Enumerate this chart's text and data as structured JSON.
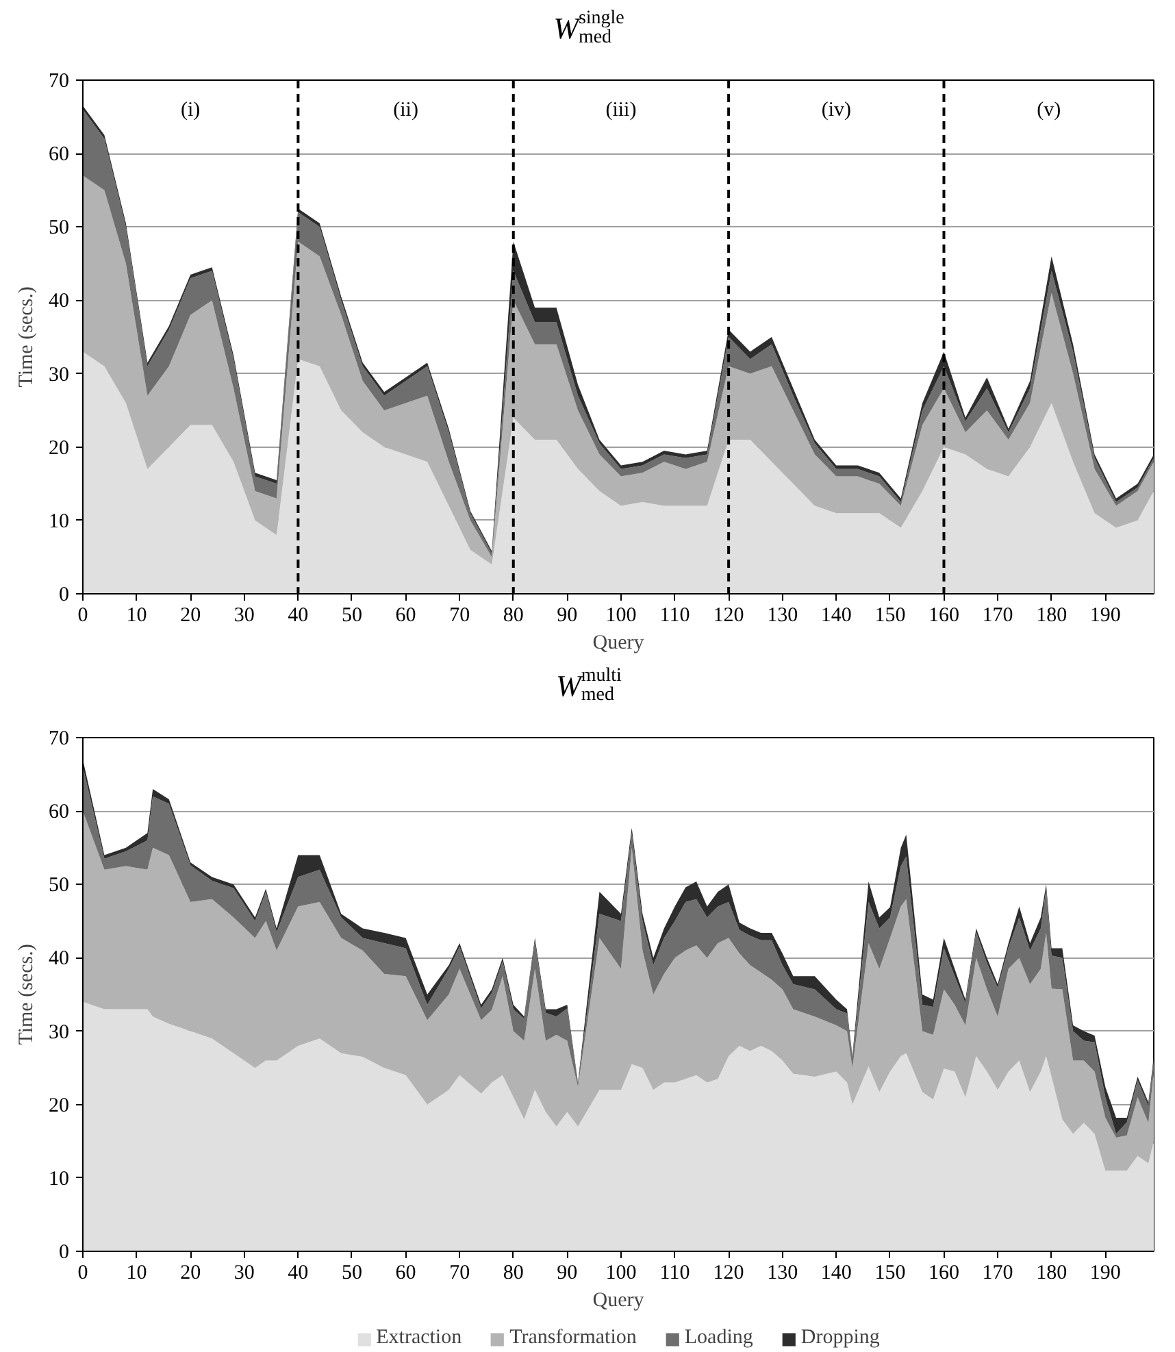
{
  "chart_data": [
    {
      "type": "area",
      "stacked": true,
      "title": "W$_{med}$$^{single}$",
      "xlabel": "Query",
      "ylabel": "Time (secs.)",
      "xlim": [
        0,
        199
      ],
      "xticks": [
        0,
        10,
        20,
        30,
        40,
        50,
        60,
        70,
        80,
        90,
        100,
        110,
        120,
        130,
        140,
        150,
        160,
        170,
        180,
        190
      ],
      "ylim": [
        0,
        70
      ],
      "yticks": [
        0,
        10,
        20,
        30,
        40,
        50,
        60,
        70
      ],
      "grid": "y",
      "legend": false,
      "x": [
        0,
        4,
        8,
        12,
        16,
        20,
        24,
        28,
        32,
        36,
        40,
        44,
        48,
        52,
        56,
        60,
        64,
        68,
        72,
        76,
        80,
        84,
        88,
        92,
        96,
        100,
        104,
        108,
        112,
        116,
        120,
        124,
        128,
        132,
        136,
        140,
        144,
        148,
        152,
        156,
        160,
        164,
        168,
        172,
        176,
        180,
        184,
        188,
        192,
        196,
        199
      ],
      "series": [
        {
          "color": "#e0e0e0",
          "values": [
            33,
            31,
            26,
            17,
            20,
            23,
            23,
            18,
            10,
            8,
            32,
            31,
            25,
            22,
            20,
            19,
            18,
            12,
            6,
            4,
            24,
            21,
            21,
            17,
            14,
            12,
            12.5,
            12,
            12,
            12,
            21,
            21,
            18,
            15,
            12,
            11,
            11,
            11,
            9,
            14,
            20,
            19,
            17,
            16,
            20,
            26,
            18,
            11,
            9,
            10,
            14
          ]
        },
        {
          "color": "#b3b3b3",
          "values": [
            24,
            24,
            19,
            10,
            11,
            15,
            17,
            10,
            4,
            5,
            16,
            15,
            13,
            7,
            5,
            7,
            9,
            6,
            4,
            1,
            16,
            13,
            13,
            8,
            5,
            4,
            4,
            6,
            5,
            6,
            10,
            9,
            13,
            10,
            7,
            5,
            5,
            4,
            3,
            9,
            8,
            3,
            8,
            5,
            6,
            15,
            12,
            6,
            3,
            4,
            4
          ]
        },
        {
          "color": "#6e6e6e",
          "values": [
            9,
            7,
            5,
            4,
            5,
            5,
            4,
            4,
            2,
            2,
            4,
            4,
            2,
            2,
            2,
            3,
            4,
            4,
            1,
            0.5,
            4,
            3,
            3,
            2,
            1.5,
            1,
            1,
            1,
            1.5,
            1,
            4,
            2,
            3,
            2,
            1.5,
            1,
            1,
            1,
            0.5,
            2,
            3,
            1.5,
            3,
            1,
            2,
            3,
            3,
            1.5,
            0.5,
            0.5,
            0.5
          ]
        },
        {
          "color": "#2d2d2d",
          "values": [
            0.5,
            0.5,
            0.5,
            0.5,
            0.5,
            0.5,
            0.5,
            0.5,
            0.5,
            0.5,
            0.5,
            0.5,
            0.5,
            0.5,
            0.5,
            0.5,
            0.5,
            0.5,
            0.3,
            0.3,
            4,
            2,
            2,
            1.5,
            0.5,
            0.5,
            0.5,
            0.5,
            0.5,
            0.5,
            1,
            1,
            1,
            1,
            0.5,
            0.5,
            0.5,
            0.5,
            0.5,
            1,
            2,
            0.5,
            1.5,
            0.5,
            1,
            2,
            1,
            0.5,
            0.5,
            0.5,
            0.5
          ]
        }
      ],
      "ref_lines": [
        {
          "axis": "x",
          "value": 40,
          "line_style": "dashed",
          "color": "#000000"
        },
        {
          "axis": "x",
          "value": 80,
          "line_style": "dashed",
          "color": "#000000"
        },
        {
          "axis": "x",
          "value": 120,
          "line_style": "dashed",
          "color": "#000000"
        },
        {
          "axis": "x",
          "value": 160,
          "line_style": "dashed",
          "color": "#000000"
        }
      ],
      "annotations": [
        "(i)",
        "(ii)",
        "(iii)",
        "(iv)",
        "(v)"
      ]
    },
    {
      "type": "area",
      "stacked": true,
      "title": "W$_{med}$$^{multi}$",
      "xlabel": "Query",
      "ylabel": "Time (secs.)",
      "xlim": [
        0,
        199
      ],
      "xticks": [
        0,
        10,
        20,
        30,
        40,
        50,
        60,
        70,
        80,
        90,
        100,
        110,
        120,
        130,
        140,
        150,
        160,
        170,
        180,
        190
      ],
      "ylim": [
        0,
        70
      ],
      "yticks": [
        0,
        10,
        20,
        30,
        40,
        50,
        60,
        70
      ],
      "grid": "y",
      "legend": "bottom",
      "x": [
        0,
        4,
        8,
        12,
        13,
        16,
        20,
        24,
        28,
        32,
        34,
        36,
        40,
        44,
        48,
        52,
        56,
        60,
        64,
        68,
        70,
        74,
        76,
        78,
        80,
        82,
        84,
        86,
        88,
        90,
        92,
        96,
        100,
        102,
        104,
        106,
        108,
        110,
        112,
        114,
        116,
        118,
        120,
        122,
        124,
        126,
        128,
        130,
        132,
        136,
        140,
        142,
        143,
        146,
        148,
        150,
        152,
        153,
        156,
        158,
        160,
        162,
        164,
        166,
        168,
        170,
        172,
        174,
        176,
        178,
        179,
        180,
        182,
        184,
        186,
        188,
        190,
        192,
        194,
        196,
        198,
        199
      ],
      "series": [
        {
          "name": "Extraction",
          "color": "#e0e0e0",
          "values": [
            34,
            33,
            33,
            33,
            32,
            31,
            30,
            29,
            27,
            25,
            26,
            26,
            28,
            29,
            27,
            26.5,
            25,
            24,
            20,
            22,
            24,
            21.5,
            23,
            24,
            21,
            18,
            22,
            19,
            17,
            19,
            17,
            22,
            22,
            25.5,
            25,
            22,
            23,
            23,
            23.5,
            24,
            23,
            23.5,
            26.6,
            28,
            27.3,
            28,
            27.3,
            26,
            24.2,
            23.8,
            24.5,
            23,
            20,
            25.2,
            21.7,
            24.5,
            26.6,
            27,
            21.7,
            20.7,
            24.9,
            24.5,
            21,
            26.6,
            24.5,
            22,
            24.5,
            26,
            21.7,
            24.5,
            26.6,
            23.8,
            18,
            16,
            17.5,
            16,
            11,
            11,
            11,
            13,
            12,
            15
          ]
        },
        {
          "name": "Transformation",
          "color": "#b3b3b3",
          "values": [
            26,
            19,
            19.5,
            19,
            23,
            23,
            17.6,
            19,
            18.5,
            17.7,
            19,
            15,
            19,
            18.6,
            15.7,
            14.5,
            12.8,
            13.5,
            11.5,
            13,
            14.5,
            10,
            9.9,
            13.5,
            9,
            10.7,
            16.5,
            9.7,
            12.5,
            9.7,
            5.4,
            20.7,
            16.5,
            29.5,
            16,
            13,
            14.8,
            17,
            17.5,
            17.7,
            17,
            18.5,
            16.1,
            12.6,
            11.7,
            10,
            9.7,
            9.7,
            8.8,
            8.2,
            6.3,
            7,
            5,
            16.8,
            16.8,
            18.2,
            20.4,
            21,
            8.3,
            8.8,
            10.8,
            9.1,
            9.8,
            13.4,
            11.2,
            10,
            14,
            14,
            14.7,
            14,
            16.8,
            12,
            17.7,
            10,
            8.5,
            8.5,
            7.2,
            4.5,
            4.8,
            8,
            5.5,
            9.5
          ]
        },
        {
          "name": "Loading",
          "color": "#6e6e6e",
          "values": [
            6,
            1.5,
            2,
            4,
            7,
            7,
            5,
            2.5,
            4,
            2.3,
            4,
            2.5,
            4,
            4.4,
            2.8,
            1.7,
            4.2,
            3.8,
            2.1,
            3.5,
            3,
            1.6,
            2.3,
            2,
            3,
            3,
            3.7,
            3.8,
            2.5,
            4.4,
            0.4,
            3.3,
            6.5,
            2,
            4,
            4,
            4.9,
            5,
            6.6,
            6.3,
            5.5,
            5,
            4.9,
            3.2,
            4,
            4.4,
            5.4,
            3.3,
            3.4,
            3.7,
            2.2,
            2.4,
            1.3,
            5.6,
            5.5,
            2.8,
            5.5,
            5.8,
            3.6,
            3.8,
            5.6,
            3.9,
            3,
            3.5,
            3.6,
            3.9,
            2.9,
            5.5,
            4.6,
            5.5,
            6,
            4.5,
            4.3,
            4,
            2.7,
            4,
            2.8,
            0.5,
            1.8,
            2.3,
            2.3,
            1.6
          ]
        },
        {
          "name": "Dropping",
          "color": "#2d2d2d",
          "values": [
            1,
            0.5,
            0.5,
            1,
            1,
            0.6,
            0.4,
            0.5,
            0.5,
            0.5,
            0.4,
            0.5,
            3,
            2,
            0.5,
            1.3,
            1.4,
            1.4,
            1.4,
            0.5,
            0.5,
            0.5,
            0.5,
            0.5,
            0.6,
            0.3,
            0.5,
            0.5,
            1,
            0.5,
            0.2,
            3,
            1,
            0.7,
            1,
            1,
            1.3,
            2,
            2,
            2.4,
            1.5,
            2,
            2.4,
            1,
            1,
            1,
            1,
            1.6,
            1.1,
            1.8,
            1.3,
            0.6,
            0.3,
            2.8,
            1.5,
            1.4,
            2.5,
            3,
            1.4,
            1,
            1.4,
            1,
            0.5,
            0.5,
            0.7,
            0.5,
            0.6,
            1.5,
            1,
            1.5,
            0.6,
            1,
            1.3,
            0.8,
            1.3,
            0.9,
            1.4,
            2.2,
            0.6,
            0.5,
            0.5,
            0.5
          ]
        }
      ]
    }
  ]
}
